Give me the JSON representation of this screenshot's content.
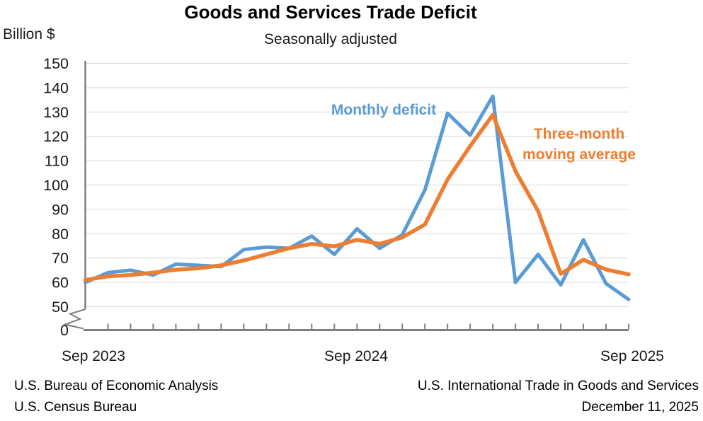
{
  "chart": {
    "title": "Goods and Services Trade Deficit",
    "subtitle": "Seasonally adjusted",
    "y_axis_title": "Billion $"
  },
  "annotations": {
    "monthly_deficit_label": "Monthly deficit",
    "moving_average_label_line1": "Three-month",
    "moving_average_label_line2": "moving average"
  },
  "footer": {
    "left_line1": "U.S. Bureau of Economic Analysis",
    "left_line2": "U.S. Census Bureau",
    "right_line1": "U.S. International Trade in Goods and Services",
    "right_line2": "December 11, 2025"
  },
  "colors": {
    "monthly_deficit": "#5B9BD5",
    "moving_average": "#ED7D31",
    "gridline": "#D9D9D9",
    "axis": "#7F7F7F",
    "text": "#1a1a1a"
  },
  "chart_data": {
    "type": "line",
    "title": "Goods and Services Trade Deficit",
    "subtitle": "Seasonally adjusted",
    "ylabel": "Billion $",
    "grid": "horizontal",
    "y_axis_break_between": [
      0,
      50
    ],
    "ylim_display": [
      50,
      150
    ],
    "x": [
      "Sep 2023",
      "Oct 2023",
      "Nov 2023",
      "Dec 2023",
      "Jan 2024",
      "Feb 2024",
      "Mar 2024",
      "Apr 2024",
      "May 2024",
      "Jun 2024",
      "Jul 2024",
      "Aug 2024",
      "Sep 2024",
      "Oct 2024",
      "Nov 2024",
      "Dec 2024",
      "Jan 2025",
      "Feb 2025",
      "Mar 2025",
      "Apr 2025",
      "May 2025",
      "Jun 2025",
      "Jul 2025",
      "Aug 2025",
      "Sep 2025"
    ],
    "x_tick_labels": [
      "Sep 2023",
      "Sep 2024",
      "Sep 2025"
    ],
    "y_ticks": [
      150,
      140,
      130,
      120,
      110,
      100,
      90,
      80,
      70,
      60,
      50,
      0
    ],
    "y_gridlines": [
      50,
      60,
      70,
      80,
      90,
      100,
      110,
      120,
      130,
      140,
      150
    ],
    "series": [
      {
        "name": "Monthly deficit",
        "color": "#5B9BD5",
        "values": [
          60,
          64,
          65,
          63,
          67.5,
          67,
          66.5,
          73.5,
          74.5,
          74,
          79,
          71.5,
          82,
          74,
          79.5,
          98,
          129.5,
          120.5,
          136.5,
          60,
          71.5,
          59,
          77.5,
          59.5,
          53
        ]
      },
      {
        "name": "Three-month moving average",
        "color": "#ED7D31",
        "values": [
          61,
          62.5,
          63,
          64,
          65.2,
          65.8,
          67,
          69,
          71.5,
          74,
          75.8,
          74.8,
          77.5,
          75.8,
          78.5,
          83.8,
          102.3,
          116,
          128.8,
          105.7,
          89.3,
          63.5,
          69.3,
          65.3,
          63.3
        ]
      }
    ]
  }
}
